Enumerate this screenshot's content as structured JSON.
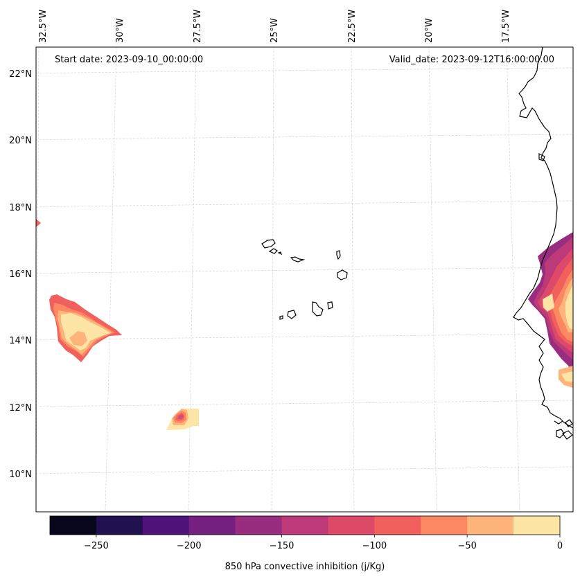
{
  "map": {
    "start_date_text": "Start date: 2023-09-10_00:00:00",
    "valid_date_text": "Valid_date: 2023-09-12T16:00:00.00",
    "lon_labels": [
      "32.5°W",
      "30°W",
      "27.5°W",
      "25°W",
      "22.5°W",
      "20°W",
      "17.5°W"
    ],
    "lat_labels": [
      "22°N",
      "20°N",
      "18°N",
      "16°N",
      "14°N",
      "12°N",
      "10°N"
    ],
    "gridlines": true,
    "variable": "850 hPa convective inhibition (j/Kg)"
  },
  "colorbar": {
    "label": "850 hPa convective inhibition (j/Kg)",
    "tick_labels": [
      "−250",
      "−200",
      "−150",
      "−100",
      "−50",
      "0"
    ],
    "tick_values": [
      -250,
      -200,
      -150,
      -100,
      -50,
      0
    ],
    "range": [
      -275,
      0
    ],
    "levels": [
      -275,
      -250,
      -225,
      -200,
      -175,
      -150,
      -125,
      -100,
      -75,
      -50,
      -25,
      0
    ],
    "colors": [
      "#07061c",
      "#221150",
      "#4f127b",
      "#751f80",
      "#982d80",
      "#bd3977",
      "#dd4968",
      "#f1605d",
      "#fb8861",
      "#feb47b",
      "#fde6a5"
    ]
  }
}
